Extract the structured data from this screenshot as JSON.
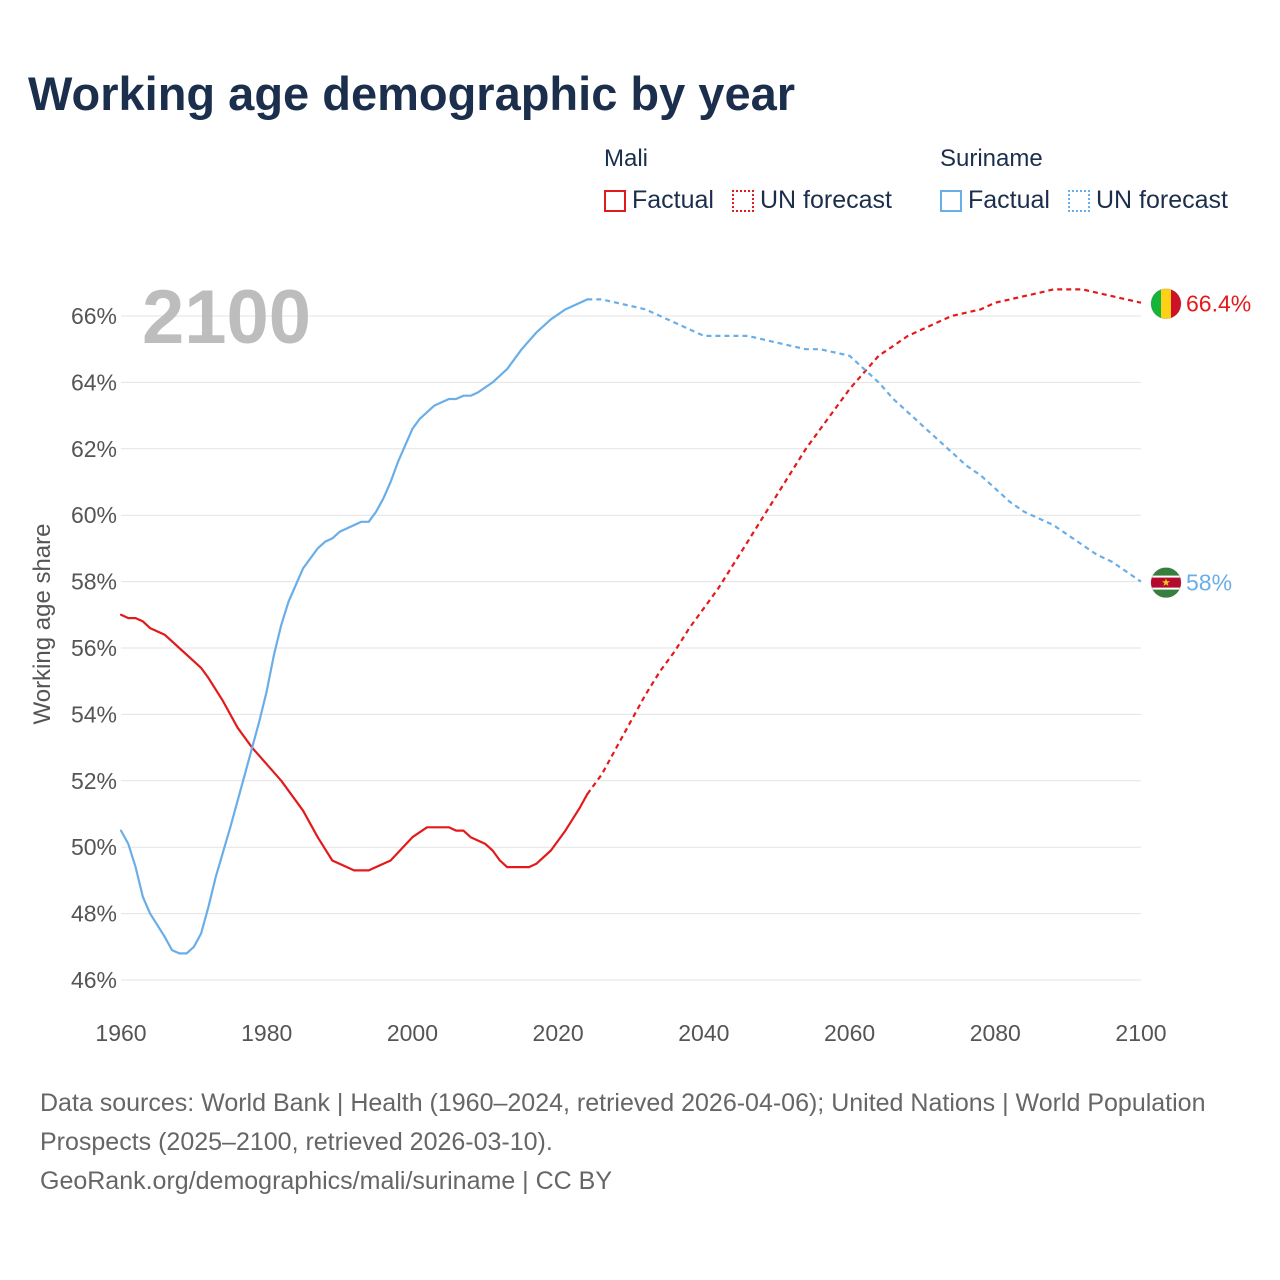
{
  "chart_data": {
    "type": "line",
    "title": "Working age demographic by year",
    "ylabel": "Working age share",
    "xlabel": "",
    "year_label": "2100",
    "xlim": [
      1960,
      2100
    ],
    "ylim": [
      45.5,
      67
    ],
    "x_ticks": [
      1960,
      1980,
      2000,
      2020,
      2040,
      2060,
      2080,
      2100
    ],
    "x_tick_labels": [
      "1960",
      "1980",
      "2000",
      "2020",
      "2040",
      "2060",
      "2080",
      "2100"
    ],
    "y_ticks": [
      46,
      48,
      50,
      52,
      54,
      56,
      58,
      60,
      62,
      64,
      66
    ],
    "y_tick_labels": [
      "46%",
      "48%",
      "50%",
      "52%",
      "54%",
      "56%",
      "58%",
      "60%",
      "62%",
      "64%",
      "66%"
    ],
    "grid": true,
    "legend_placement": "top-right",
    "legend_groups": [
      {
        "name": "Mali",
        "factual_label": "Factual",
        "forecast_label": "UN forecast",
        "color": "#e31a1c"
      },
      {
        "name": "Suriname",
        "factual_label": "Factual",
        "forecast_label": "UN forecast",
        "color": "#6aaee8"
      }
    ],
    "series": [
      {
        "name": "Mali",
        "color": "#e31a1c",
        "end_label": "66.4%",
        "flag": "mali-flag",
        "flag_colors": [
          "#14b53a",
          "#fcd116",
          "#ce1126"
        ],
        "factual": {
          "x": [
            1960,
            1961,
            1962,
            1963,
            1964,
            1966,
            1968,
            1970,
            1971,
            1972,
            1974,
            1976,
            1978,
            1980,
            1982,
            1985,
            1987,
            1989,
            1992,
            1994,
            1997,
            2000,
            2002,
            2005,
            2006,
            2007,
            2008,
            2010,
            2011,
            2012,
            2013,
            2015,
            2016,
            2017,
            2019,
            2021,
            2023,
            2024
          ],
          "y": [
            57.0,
            56.9,
            56.9,
            56.8,
            56.6,
            56.4,
            56.0,
            55.6,
            55.4,
            55.1,
            54.4,
            53.6,
            53.0,
            52.5,
            52.0,
            51.1,
            50.3,
            49.6,
            49.3,
            49.3,
            49.6,
            50.3,
            50.6,
            50.6,
            50.5,
            50.5,
            50.3,
            50.1,
            49.9,
            49.6,
            49.4,
            49.4,
            49.4,
            49.5,
            49.9,
            50.5,
            51.2,
            51.6
          ]
        },
        "forecast": {
          "x": [
            2024,
            2026,
            2028,
            2030,
            2032,
            2034,
            2036,
            2038,
            2040,
            2042,
            2044,
            2046,
            2048,
            2050,
            2052,
            2054,
            2056,
            2058,
            2060,
            2062,
            2064,
            2066,
            2068,
            2070,
            2072,
            2074,
            2076,
            2078,
            2080,
            2082,
            2084,
            2086,
            2088,
            2090,
            2092,
            2094,
            2096,
            2098,
            2100
          ],
          "y": [
            51.6,
            52.2,
            53.0,
            53.8,
            54.6,
            55.3,
            55.9,
            56.6,
            57.2,
            57.8,
            58.5,
            59.2,
            59.9,
            60.6,
            61.3,
            62.0,
            62.6,
            63.2,
            63.8,
            64.3,
            64.8,
            65.1,
            65.4,
            65.6,
            65.8,
            66.0,
            66.1,
            66.2,
            66.4,
            66.5,
            66.6,
            66.7,
            66.8,
            66.8,
            66.8,
            66.7,
            66.6,
            66.5,
            66.4
          ]
        }
      },
      {
        "name": "Suriname",
        "color": "#6aaee8",
        "end_label": "58%",
        "flag": "suriname-flag",
        "flag_colors": [
          "#377e3f",
          "#ffffff",
          "#b40a2d",
          "#ecc81d"
        ],
        "factual": {
          "x": [
            1960,
            1961,
            1962,
            1963,
            1964,
            1966,
            1967,
            1968,
            1969,
            1970,
            1971,
            1972,
            1973,
            1975,
            1977,
            1979,
            1980,
            1981,
            1982,
            1983,
            1985,
            1987,
            1988,
            1989,
            1990,
            1993,
            1994,
            1995,
            1996,
            1997,
            1998,
            2000,
            2001,
            2003,
            2005,
            2006,
            2007,
            2008,
            2009,
            2011,
            2013,
            2015,
            2017,
            2019,
            2021,
            2023,
            2024
          ],
          "y": [
            50.5,
            50.1,
            49.4,
            48.5,
            48.0,
            47.3,
            46.9,
            46.8,
            46.8,
            47.0,
            47.4,
            48.2,
            49.1,
            50.6,
            52.2,
            53.8,
            54.7,
            55.8,
            56.7,
            57.4,
            58.4,
            59.0,
            59.2,
            59.3,
            59.5,
            59.8,
            59.8,
            60.1,
            60.5,
            61.0,
            61.6,
            62.6,
            62.9,
            63.3,
            63.5,
            63.5,
            63.6,
            63.6,
            63.7,
            64.0,
            64.4,
            65.0,
            65.5,
            65.9,
            66.2,
            66.4,
            66.5
          ]
        },
        "forecast": {
          "x": [
            2024,
            2026,
            2028,
            2030,
            2032,
            2034,
            2036,
            2038,
            2040,
            2042,
            2044,
            2046,
            2048,
            2050,
            2052,
            2054,
            2056,
            2058,
            2060,
            2062,
            2064,
            2066,
            2068,
            2070,
            2072,
            2074,
            2076,
            2078,
            2080,
            2082,
            2084,
            2086,
            2088,
            2090,
            2092,
            2094,
            2096,
            2098,
            2100
          ],
          "y": [
            66.5,
            66.5,
            66.4,
            66.3,
            66.2,
            66.0,
            65.8,
            65.6,
            65.4,
            65.4,
            65.4,
            65.4,
            65.3,
            65.2,
            65.1,
            65.0,
            65.0,
            64.9,
            64.8,
            64.4,
            64.0,
            63.5,
            63.1,
            62.7,
            62.3,
            61.9,
            61.5,
            61.2,
            60.8,
            60.4,
            60.1,
            59.9,
            59.7,
            59.4,
            59.1,
            58.8,
            58.6,
            58.3,
            58.0
          ]
        }
      }
    ]
  },
  "footer": {
    "line1": "Data sources: World Bank | Health (1960–2024, retrieved 2026-04-06); United Nations | World Population Prospects (2025–2100, retrieved 2026-03-10).",
    "line2": "GeoRank.org/demographics/mali/suriname | CC BY"
  }
}
